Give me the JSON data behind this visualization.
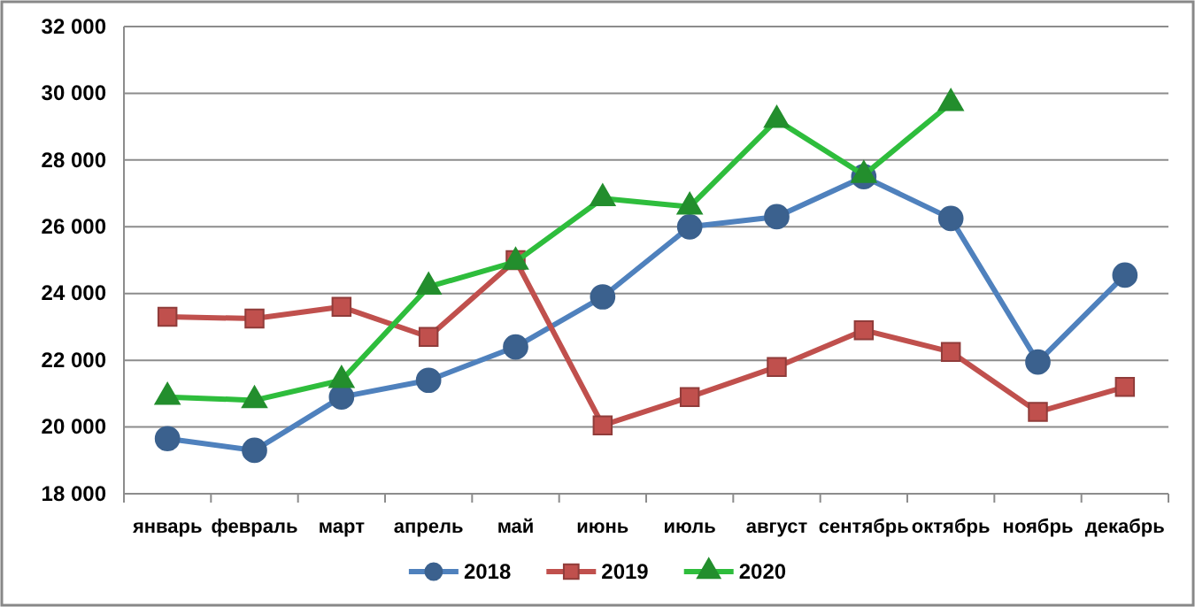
{
  "chart_data": {
    "type": "line",
    "categories": [
      "январь",
      "февраль",
      "март",
      "апрель",
      "май",
      "июнь",
      "июль",
      "август",
      "сентябрь",
      "октябрь",
      "ноябрь",
      "декабрь"
    ],
    "series": [
      {
        "name": "2018",
        "color": "#4f81bd",
        "marker": "circle",
        "values": [
          19650,
          19300,
          20900,
          21400,
          22400,
          23900,
          26000,
          26300,
          27500,
          26250,
          21950,
          24550
        ]
      },
      {
        "name": "2019",
        "color": "#c0504d",
        "marker": "square",
        "values": [
          23300,
          23250,
          23600,
          22700,
          25000,
          20050,
          20900,
          21800,
          22900,
          22250,
          20450,
          21200
        ]
      },
      {
        "name": "2020",
        "color": "#2ebd3c",
        "marker": "triangle",
        "values": [
          20900,
          20800,
          21400,
          24200,
          24950,
          26850,
          26600,
          29200,
          27550,
          29700,
          null,
          null
        ]
      }
    ],
    "ylim": [
      18000,
      32000
    ],
    "yticks": [
      {
        "value": 18000,
        "label": "18 000"
      },
      {
        "value": 20000,
        "label": "20 000"
      },
      {
        "value": 22000,
        "label": "22 000"
      },
      {
        "value": 24000,
        "label": "24 000"
      },
      {
        "value": 26000,
        "label": "26 000"
      },
      {
        "value": 28000,
        "label": "28 000"
      },
      {
        "value": 30000,
        "label": "30 000"
      },
      {
        "value": 32000,
        "label": "32 000"
      }
    ],
    "grid": "y",
    "legend": "bottom"
  }
}
